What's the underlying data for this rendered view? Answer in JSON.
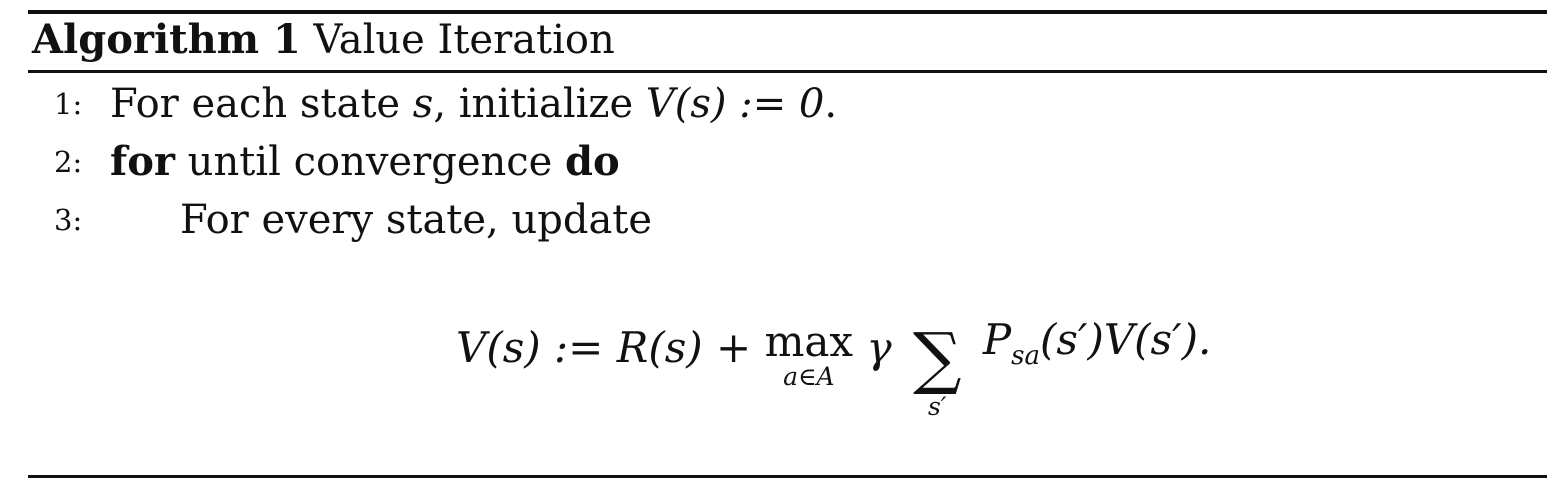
{
  "algorithm": {
    "label": "Algorithm 1",
    "title": "Value Iteration"
  },
  "lines": [
    {
      "number": "1:",
      "text_a": "For each state ",
      "var_s": "s",
      "text_b": ", initialize ",
      "math": "V(s) := 0",
      "text_end": "."
    },
    {
      "number": "2:",
      "kw_for": "for",
      "text": " until convergence ",
      "kw_do": "do"
    },
    {
      "number": "3:",
      "text": "For every state, update"
    }
  ],
  "equation": {
    "lhs": "V(s) := R(s) + ",
    "max_op": "max",
    "max_sub": "a∈A",
    "gamma": "γ",
    "sum_sym": "∑",
    "sum_sub": "s′",
    "P": "P",
    "P_sub": "sa",
    "rhs": "(s′)V(s′)."
  }
}
